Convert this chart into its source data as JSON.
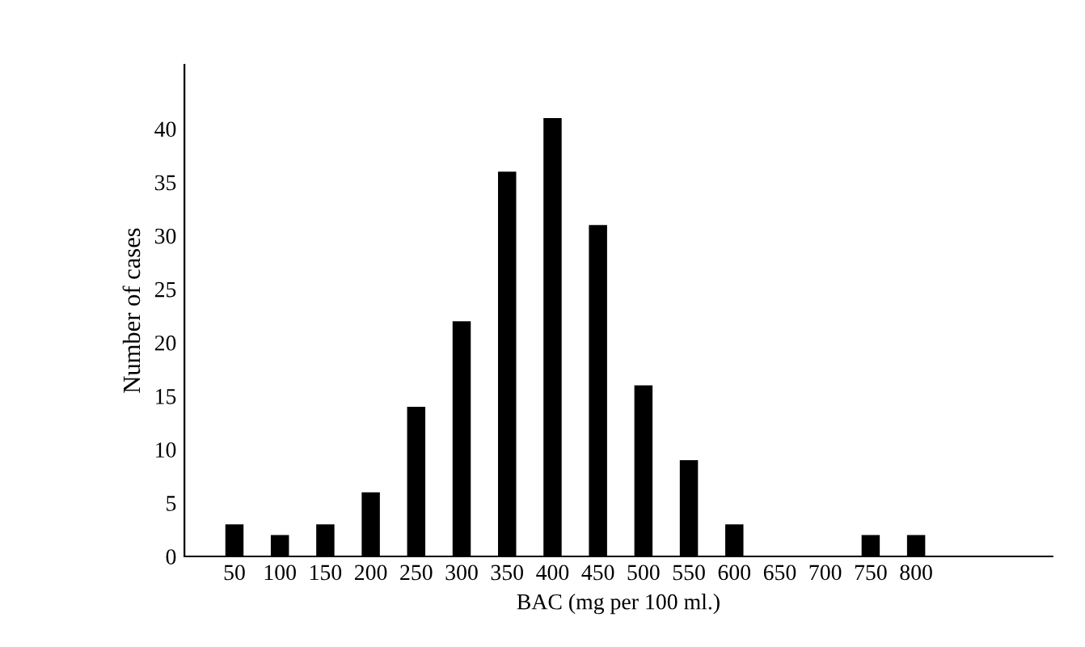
{
  "chart_data": {
    "type": "bar",
    "xlabel": "BAC (mg per 100 ml.)",
    "ylabel": "Number of cases",
    "categories": [
      "50",
      "100",
      "150",
      "200",
      "250",
      "300",
      "350",
      "400",
      "450",
      "500",
      "550",
      "600",
      "650",
      "700",
      "750",
      "800"
    ],
    "values": [
      3,
      2,
      3,
      6,
      14,
      22,
      36,
      41,
      31,
      16,
      9,
      3,
      0,
      0,
      2,
      2
    ],
    "color": "#000000",
    "ylim": [
      0,
      46
    ],
    "yticks": [
      0,
      5,
      10,
      15,
      20,
      25,
      30,
      35,
      40
    ],
    "grid": false
  }
}
